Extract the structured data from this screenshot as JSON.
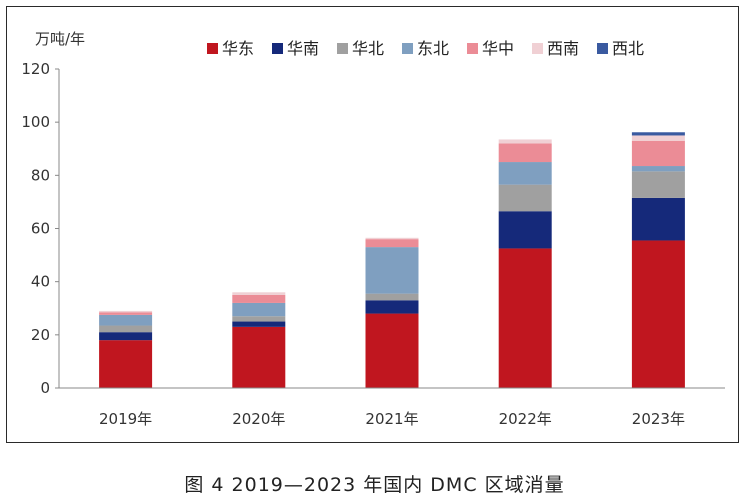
{
  "caption": "图 4  2019—2023 年国内 DMC 区域消量",
  "chart_data": {
    "type": "bar",
    "stacked": true,
    "ylabel": "万吨/年",
    "ylim": [
      0,
      120
    ],
    "yticks": [
      0,
      20,
      40,
      60,
      80,
      100,
      120
    ],
    "grid": false,
    "legend_position": "top",
    "categories": [
      "2019年",
      "2020年",
      "2021年",
      "2022年",
      "2023年"
    ],
    "series": [
      {
        "name": "华东",
        "color": "#c0161f",
        "values": [
          18,
          23,
          28,
          52.5,
          55.5
        ]
      },
      {
        "name": "华南",
        "color": "#15297a",
        "values": [
          3,
          2,
          5,
          14,
          16
        ]
      },
      {
        "name": "华北",
        "color": "#a0a0a0",
        "values": [
          2.5,
          2,
          2.5,
          10,
          10
        ]
      },
      {
        "name": "东北",
        "color": "#7f9fc0",
        "values": [
          4,
          5,
          17.5,
          8.5,
          2
        ]
      },
      {
        "name": "华中",
        "color": "#eb8c96",
        "values": [
          1,
          3,
          3,
          7,
          9.5
        ]
      },
      {
        "name": "西南",
        "color": "#f0d0d4",
        "values": [
          0.5,
          1,
          0.5,
          1.5,
          2
        ]
      },
      {
        "name": "西北",
        "color": "#3a5aa0",
        "values": [
          0,
          0,
          0,
          0,
          1.2
        ]
      }
    ]
  }
}
